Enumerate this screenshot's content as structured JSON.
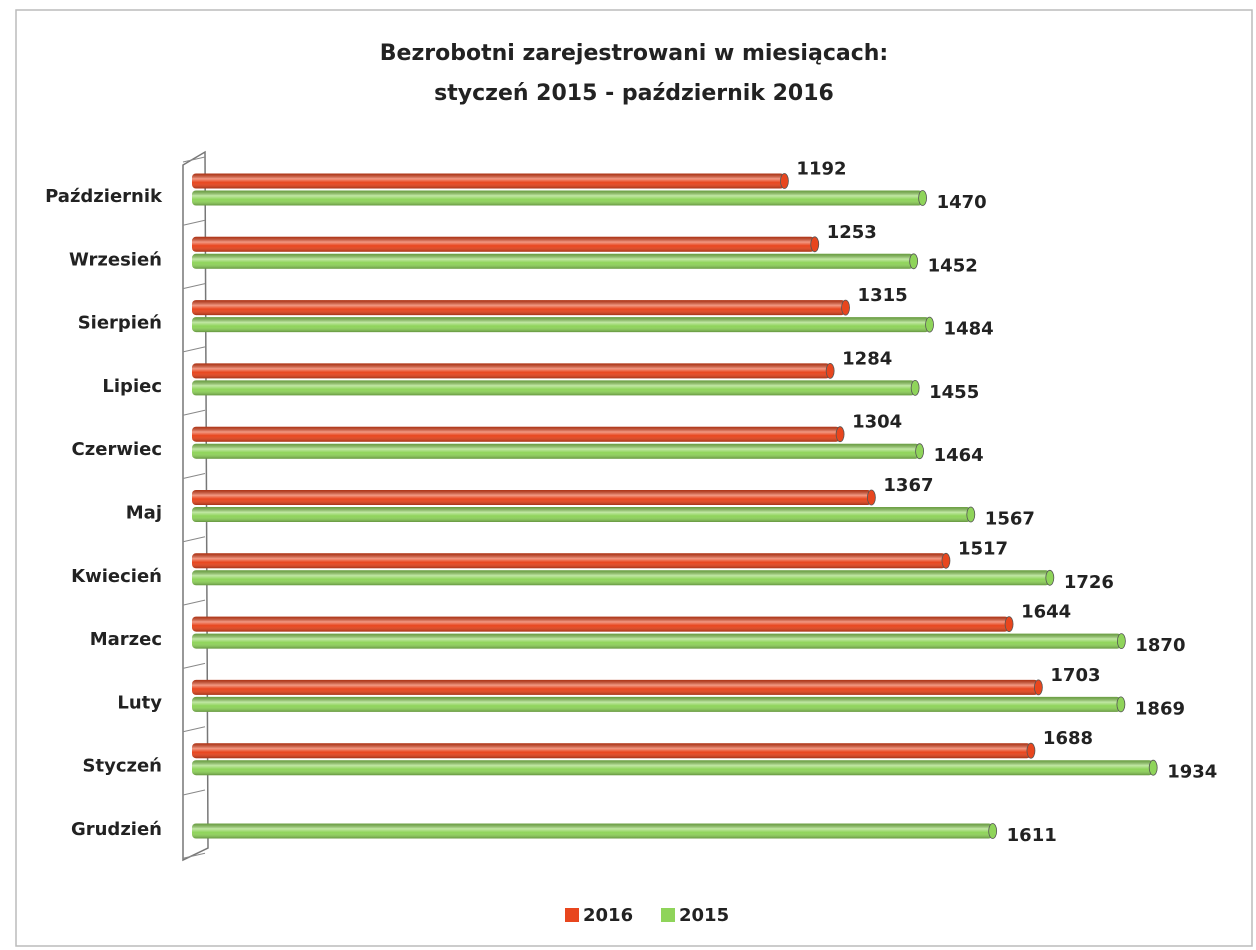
{
  "chart_data": {
    "type": "bar",
    "orientation": "horizontal",
    "title": [
      "Bezrobotni zarejestrowani w miesiącach:",
      "styczeń 2015 - październik 2016"
    ],
    "categories": [
      "Październik",
      "Wrzesień",
      "Sierpień",
      "Lipiec",
      "Czerwiec",
      "Maj",
      "Kwiecień",
      "Marzec",
      "Luty",
      "Styczeń",
      "Grudzień"
    ],
    "series": [
      {
        "name": "2016",
        "color": "#e8461e",
        "values": [
          1192,
          1253,
          1315,
          1284,
          1304,
          1367,
          1517,
          1644,
          1703,
          1688,
          null
        ]
      },
      {
        "name": "2015",
        "color": "#8fd45a",
        "values": [
          1470,
          1452,
          1484,
          1455,
          1464,
          1567,
          1726,
          1870,
          1869,
          1934,
          1611
        ]
      }
    ],
    "legend": "bottom"
  }
}
